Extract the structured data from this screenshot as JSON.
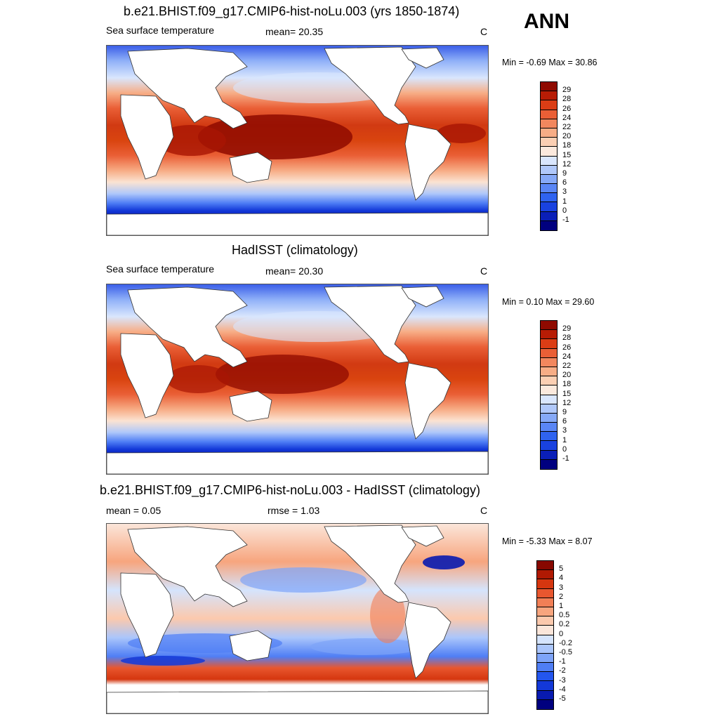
{
  "season": "ANN",
  "palettes": {
    "sst": [
      "#00007f",
      "#0a1fb8",
      "#1942e0",
      "#2f63f0",
      "#5a86f5",
      "#86a9f7",
      "#b0c8fa",
      "#d9e6fd",
      "#fbe9dd",
      "#fbcfb3",
      "#f7ad86",
      "#f2875e",
      "#ea5f36",
      "#db3d15",
      "#b71c05",
      "#8f0a00"
    ],
    "diff": [
      "#00007f",
      "#081ab0",
      "#1338d8",
      "#2356ef",
      "#4f7ef5",
      "#7ea4f8",
      "#abc6fb",
      "#d5e4fd",
      "#fbe6da",
      "#fbc9ad",
      "#f7a57e",
      "#f17f56",
      "#e8572f",
      "#d5360f",
      "#b01903",
      "#870800"
    ]
  },
  "panels": [
    {
      "id": "model",
      "title": "b.e21.BHIST.f09_g17.CMIP6-hist-noLu.003 (yrs 1850-1874)",
      "left_label": "Sea surface temperature",
      "mid_label": "mean=  20.35",
      "unit": "C",
      "minmax": "Min =  -0.69 Max =  30.86",
      "palette": "sst",
      "levels": [
        "29",
        "28",
        "26",
        "24",
        "22",
        "20",
        "18",
        "15",
        "12",
        "9",
        "6",
        "3",
        "1",
        "0",
        "-1"
      ]
    },
    {
      "id": "obs",
      "title": "HadISST (climatology)",
      "left_label": "Sea surface temperature",
      "mid_label": "mean=  20.30",
      "unit": "C",
      "minmax": "Min =   0.10 Max =  29.60",
      "palette": "sst",
      "levels": [
        "29",
        "28",
        "26",
        "24",
        "22",
        "20",
        "18",
        "15",
        "12",
        "9",
        "6",
        "3",
        "1",
        "0",
        "-1"
      ]
    },
    {
      "id": "diff",
      "title": "b.e21.BHIST.f09_g17.CMIP6-hist-noLu.003 - HadISST (climatology)",
      "left_label": "mean =   0.05",
      "mid_label": "rmse =   1.03",
      "unit": "C",
      "minmax": "Min =  -5.33 Max =   8.07",
      "palette": "diff",
      "levels": [
        "5",
        "4",
        "3",
        "2",
        "1",
        "0.5",
        "0.2",
        "0",
        "-0.2",
        "-0.5",
        "-1",
        "-2",
        "-3",
        "-4",
        "-5"
      ]
    }
  ]
}
